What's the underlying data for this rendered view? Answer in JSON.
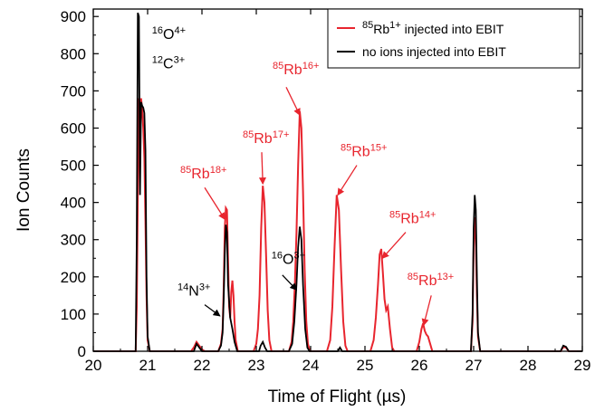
{
  "chart_data": {
    "type": "line",
    "title": "",
    "xlabel": "Time of Flight (µs)",
    "ylabel": "Ion Counts",
    "xlim": [
      20,
      29
    ],
    "ylim": [
      0,
      920
    ],
    "x_ticks": [
      20,
      21,
      22,
      23,
      24,
      25,
      26,
      27,
      28,
      29
    ],
    "y_ticks": [
      0,
      100,
      200,
      300,
      400,
      500,
      600,
      700,
      800,
      900
    ],
    "grid": false,
    "legend_position": "top-right",
    "series": [
      {
        "name": "85Rb1+ injected into EBIT",
        "label_parts": {
          "mass": "85",
          "element": "Rb",
          "charge": "1+",
          "rest": " injected into EBIT"
        },
        "color": "#e8252e",
        "points": [
          [
            20.0,
            0
          ],
          [
            20.78,
            0
          ],
          [
            20.8,
            120
          ],
          [
            20.82,
            420
          ],
          [
            20.84,
            680
          ],
          [
            20.86,
            640
          ],
          [
            20.88,
            680
          ],
          [
            20.9,
            650
          ],
          [
            20.92,
            600
          ],
          [
            20.94,
            520
          ],
          [
            20.96,
            350
          ],
          [
            20.98,
            150
          ],
          [
            21.0,
            30
          ],
          [
            21.04,
            0
          ],
          [
            21.8,
            0
          ],
          [
            21.85,
            10
          ],
          [
            21.9,
            25
          ],
          [
            21.95,
            15
          ],
          [
            22.0,
            5
          ],
          [
            22.05,
            0
          ],
          [
            22.3,
            0
          ],
          [
            22.35,
            20
          ],
          [
            22.38,
            60
          ],
          [
            22.4,
            170
          ],
          [
            22.42,
            330
          ],
          [
            22.44,
            385
          ],
          [
            22.46,
            380
          ],
          [
            22.48,
            250
          ],
          [
            22.5,
            120
          ],
          [
            22.52,
            90
          ],
          [
            22.54,
            160
          ],
          [
            22.56,
            190
          ],
          [
            22.58,
            150
          ],
          [
            22.6,
            80
          ],
          [
            22.62,
            30
          ],
          [
            22.66,
            0
          ],
          [
            22.95,
            0
          ],
          [
            23.0,
            20
          ],
          [
            23.03,
            60
          ],
          [
            23.06,
            150
          ],
          [
            23.09,
            330
          ],
          [
            23.12,
            445
          ],
          [
            23.15,
            400
          ],
          [
            23.18,
            260
          ],
          [
            23.21,
            110
          ],
          [
            23.24,
            30
          ],
          [
            23.28,
            0
          ],
          [
            23.6,
            0
          ],
          [
            23.65,
            25
          ],
          [
            23.68,
            80
          ],
          [
            23.71,
            180
          ],
          [
            23.74,
            320
          ],
          [
            23.77,
            500
          ],
          [
            23.8,
            645
          ],
          [
            23.83,
            600
          ],
          [
            23.86,
            430
          ],
          [
            23.89,
            220
          ],
          [
            23.92,
            80
          ],
          [
            23.95,
            20
          ],
          [
            23.99,
            0
          ],
          [
            24.3,
            0
          ],
          [
            24.36,
            30
          ],
          [
            24.4,
            120
          ],
          [
            24.44,
            280
          ],
          [
            24.48,
            420
          ],
          [
            24.52,
            380
          ],
          [
            24.56,
            220
          ],
          [
            24.6,
            80
          ],
          [
            24.64,
            15
          ],
          [
            24.68,
            0
          ],
          [
            25.1,
            0
          ],
          [
            25.16,
            30
          ],
          [
            25.2,
            90
          ],
          [
            25.24,
            180
          ],
          [
            25.27,
            260
          ],
          [
            25.3,
            275
          ],
          [
            25.33,
            210
          ],
          [
            25.36,
            140
          ],
          [
            25.39,
            110
          ],
          [
            25.42,
            120
          ],
          [
            25.46,
            60
          ],
          [
            25.5,
            10
          ],
          [
            25.54,
            0
          ],
          [
            25.95,
            0
          ],
          [
            26.0,
            25
          ],
          [
            26.04,
            60
          ],
          [
            26.07,
            75
          ],
          [
            26.1,
            55
          ],
          [
            26.13,
            45
          ],
          [
            26.16,
            40
          ],
          [
            26.2,
            20
          ],
          [
            26.24,
            0
          ],
          [
            26.95,
            0
          ],
          [
            26.98,
            80
          ],
          [
            27.0,
            280
          ],
          [
            27.02,
            360
          ],
          [
            27.04,
            300
          ],
          [
            27.06,
            150
          ],
          [
            27.08,
            40
          ],
          [
            27.12,
            0
          ],
          [
            28.6,
            0
          ],
          [
            28.65,
            12
          ],
          [
            28.7,
            10
          ],
          [
            28.75,
            0
          ],
          [
            29.0,
            0
          ]
        ]
      },
      {
        "name": "no ions injected into EBIT",
        "color": "#000000",
        "points": [
          [
            20.0,
            0
          ],
          [
            20.78,
            0
          ],
          [
            20.8,
            300
          ],
          [
            20.82,
            910
          ],
          [
            20.84,
            900
          ],
          [
            20.86,
            420
          ],
          [
            20.88,
            670
          ],
          [
            20.9,
            660
          ],
          [
            20.92,
            655
          ],
          [
            20.94,
            640
          ],
          [
            20.96,
            540
          ],
          [
            20.98,
            200
          ],
          [
            21.0,
            40
          ],
          [
            21.04,
            0
          ],
          [
            21.85,
            0
          ],
          [
            21.9,
            20
          ],
          [
            21.95,
            10
          ],
          [
            22.0,
            0
          ],
          [
            22.3,
            0
          ],
          [
            22.35,
            15
          ],
          [
            22.38,
            50
          ],
          [
            22.4,
            140
          ],
          [
            22.42,
            260
          ],
          [
            22.44,
            340
          ],
          [
            22.46,
            320
          ],
          [
            22.48,
            180
          ],
          [
            22.52,
            90
          ],
          [
            22.56,
            60
          ],
          [
            22.6,
            25
          ],
          [
            22.65,
            0
          ],
          [
            23.05,
            0
          ],
          [
            23.08,
            15
          ],
          [
            23.12,
            25
          ],
          [
            23.16,
            10
          ],
          [
            23.2,
            0
          ],
          [
            23.6,
            0
          ],
          [
            23.66,
            20
          ],
          [
            23.7,
            80
          ],
          [
            23.74,
            180
          ],
          [
            23.77,
            280
          ],
          [
            23.8,
            335
          ],
          [
            23.83,
            300
          ],
          [
            23.86,
            180
          ],
          [
            23.9,
            60
          ],
          [
            23.94,
            10
          ],
          [
            23.98,
            0
          ],
          [
            24.5,
            0
          ],
          [
            24.54,
            10
          ],
          [
            24.58,
            0
          ],
          [
            26.95,
            0
          ],
          [
            26.98,
            100
          ],
          [
            27.0,
            330
          ],
          [
            27.02,
            420
          ],
          [
            27.04,
            380
          ],
          [
            27.06,
            200
          ],
          [
            27.08,
            50
          ],
          [
            27.12,
            0
          ],
          [
            28.6,
            0
          ],
          [
            28.65,
            15
          ],
          [
            28.7,
            12
          ],
          [
            28.75,
            0
          ],
          [
            29.0,
            0
          ]
        ]
      }
    ],
    "annotations": [
      {
        "id": "o4",
        "mass": "16",
        "element": "O",
        "charge": "4+",
        "color": "#000000",
        "x": 21.08,
        "y": 840,
        "arrow": false
      },
      {
        "id": "c3",
        "mass": "12",
        "element": "C",
        "charge": "3+",
        "color": "#000000",
        "x": 21.08,
        "y": 760,
        "arrow": false
      },
      {
        "id": "rb18",
        "mass": "85",
        "element": "Rb",
        "charge": "18+",
        "color": "#e8252e",
        "x": 21.6,
        "y": 465,
        "arrow": true,
        "arrow_from": [
          22.05,
          440
        ],
        "arrow_to": [
          22.42,
          355
        ]
      },
      {
        "id": "rb17",
        "mass": "85",
        "element": "Rb",
        "charge": "17+",
        "color": "#e8252e",
        "x": 22.75,
        "y": 560,
        "arrow": true,
        "arrow_from": [
          23.1,
          535
        ],
        "arrow_to": [
          23.12,
          450
        ]
      },
      {
        "id": "rb16",
        "mass": "85",
        "element": "Rb",
        "charge": "16+",
        "color": "#e8252e",
        "x": 23.3,
        "y": 745,
        "arrow": true,
        "arrow_from": [
          23.55,
          710
        ],
        "arrow_to": [
          23.8,
          635
        ]
      },
      {
        "id": "rb15",
        "mass": "85",
        "element": "Rb",
        "charge": "15+",
        "color": "#e8252e",
        "x": 24.55,
        "y": 525,
        "arrow": true,
        "arrow_from": [
          24.85,
          500
        ],
        "arrow_to": [
          24.5,
          420
        ]
      },
      {
        "id": "rb14",
        "mass": "85",
        "element": "Rb",
        "charge": "14+",
        "color": "#e8252e",
        "x": 25.45,
        "y": 345,
        "arrow": true,
        "arrow_from": [
          25.75,
          320
        ],
        "arrow_to": [
          25.32,
          250
        ]
      },
      {
        "id": "rb13",
        "mass": "85",
        "element": "Rb",
        "charge": "13+",
        "color": "#e8252e",
        "x": 25.78,
        "y": 178,
        "arrow": true,
        "arrow_from": [
          26.22,
          150
        ],
        "arrow_to": [
          26.08,
          70
        ]
      },
      {
        "id": "n3",
        "mass": "14",
        "element": "N",
        "charge": "3+",
        "color": "#000000",
        "x": 21.55,
        "y": 150,
        "arrow": true,
        "arrow_from": [
          22.05,
          125
        ],
        "arrow_to": [
          22.33,
          95
        ]
      },
      {
        "id": "o3",
        "mass": "16",
        "element": "O",
        "charge": "3+",
        "color": "#000000",
        "x": 23.28,
        "y": 235,
        "arrow": true,
        "arrow_from": [
          23.48,
          205
        ],
        "arrow_to": [
          23.74,
          165
        ]
      }
    ]
  }
}
